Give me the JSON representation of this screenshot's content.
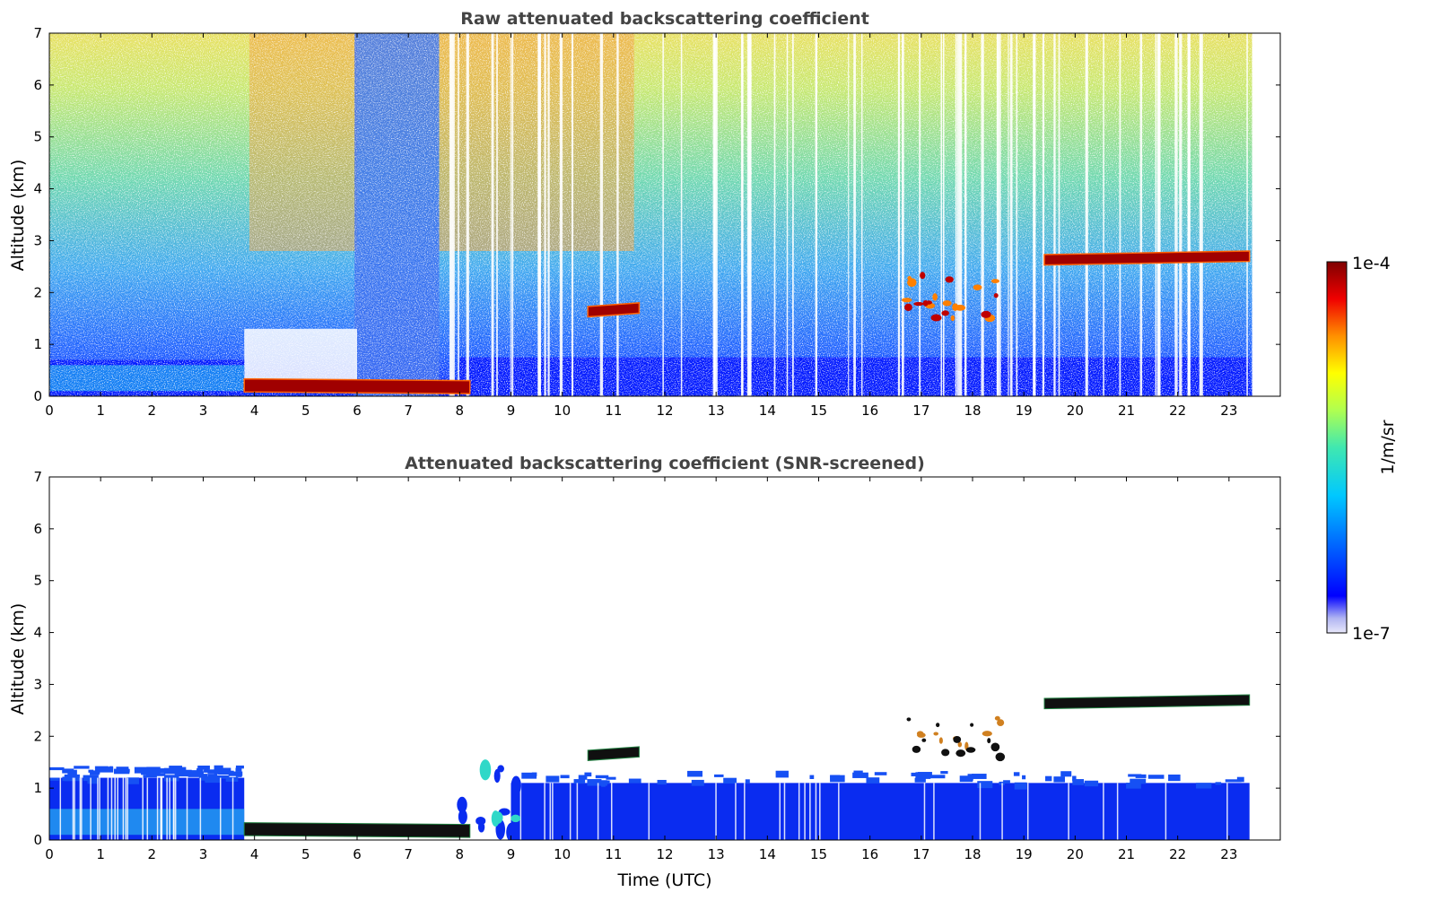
{
  "chart_data": [
    {
      "type": "heatmap",
      "title": "Raw attenuated backscattering coefficient",
      "xlabel": "",
      "ylabel": "Altitude (km)",
      "xlim": [
        0,
        24
      ],
      "ylim": [
        0,
        7
      ],
      "xticks": [
        "0",
        "1",
        "2",
        "3",
        "4",
        "5",
        "6",
        "7",
        "8",
        "9",
        "10",
        "11",
        "12",
        "13",
        "14",
        "15",
        "16",
        "17",
        "18",
        "19",
        "20",
        "21",
        "22",
        "23"
      ],
      "yticks": [
        "0",
        "1",
        "2",
        "3",
        "4",
        "5",
        "6",
        "7"
      ],
      "features": [
        {
          "name": "boundary layer",
          "x": [
            0,
            23.4
          ],
          "y": [
            0,
            0.8
          ]
        },
        {
          "name": "low cloud",
          "x": [
            3.8,
            8.2
          ],
          "y": [
            0.05,
            0.3
          ]
        },
        {
          "name": "cloud layer",
          "x": [
            10.5,
            11.5
          ],
          "y": [
            1.6,
            1.8
          ]
        },
        {
          "name": "cloud patches",
          "x": [
            16.7,
            18.6
          ],
          "y": [
            1.5,
            2.4
          ]
        },
        {
          "name": "cloud layer",
          "x": [
            19.4,
            23.4
          ],
          "y": [
            2.6,
            2.8
          ]
        }
      ]
    },
    {
      "type": "heatmap",
      "title": "Attenuated backscattering coefficient (SNR-screened)",
      "xlabel": "Time (UTC)",
      "ylabel": "Altitude (km)",
      "xlim": [
        0,
        24
      ],
      "ylim": [
        0,
        7
      ],
      "xticks": [
        "0",
        "1",
        "2",
        "3",
        "4",
        "5",
        "6",
        "7",
        "8",
        "9",
        "10",
        "11",
        "12",
        "13",
        "14",
        "15",
        "16",
        "17",
        "18",
        "19",
        "20",
        "21",
        "22",
        "23"
      ],
      "yticks": [
        "0",
        "1",
        "2",
        "3",
        "4",
        "5",
        "6",
        "7"
      ],
      "features": [
        {
          "name": "boundary layer",
          "x": [
            0,
            3.8
          ],
          "y": [
            0,
            1.2
          ]
        },
        {
          "name": "low cloud",
          "x": [
            3.8,
            8.2
          ],
          "y": [
            0.05,
            0.3
          ]
        },
        {
          "name": "boundary layer",
          "x": [
            9,
            23.4
          ],
          "y": [
            0,
            1.1
          ]
        },
        {
          "name": "cloud layer",
          "x": [
            10.5,
            11.5
          ],
          "y": [
            1.6,
            1.8
          ]
        },
        {
          "name": "cloud patches",
          "x": [
            16.7,
            18.6
          ],
          "y": [
            1.5,
            2.4
          ]
        },
        {
          "name": "cloud layer",
          "x": [
            19.4,
            23.4
          ],
          "y": [
            2.6,
            2.8
          ]
        }
      ]
    }
  ],
  "colorbar": {
    "label": "1/m/sr",
    "max_label": "1e-4",
    "min_label": "1e-7",
    "colors": [
      "#e8e8fa",
      "#c0c4f4",
      "#9aa0ee",
      "#0000ff",
      "#0044ff",
      "#0088ff",
      "#00c8ff",
      "#30e0c0",
      "#7fff7f",
      "#c8ff40",
      "#ffff00",
      "#ffc000",
      "#ff8000",
      "#ff3000",
      "#d00000",
      "#7f0000"
    ]
  }
}
